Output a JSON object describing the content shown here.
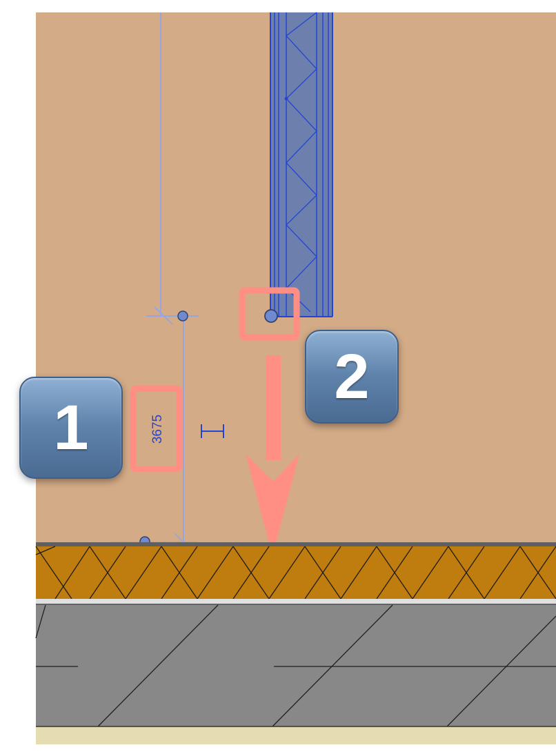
{
  "dimension": {
    "value": "3675"
  },
  "callouts": [
    {
      "number": "1",
      "target": "dimension-value"
    },
    {
      "number": "2",
      "target": "beam-endpoint-handle"
    }
  ],
  "colors": {
    "wall_background": "#d3ab87",
    "beam_fill": "#6d80ad",
    "beam_stroke": "#2444d4",
    "highlight": "#ff8f85",
    "insulation_layer": "#c07d0f",
    "concrete_layer": "#888888",
    "bottom_strip": "#e6dcb2"
  },
  "icons": [
    "dimension-lock-icon",
    "arrow-down-icon"
  ]
}
